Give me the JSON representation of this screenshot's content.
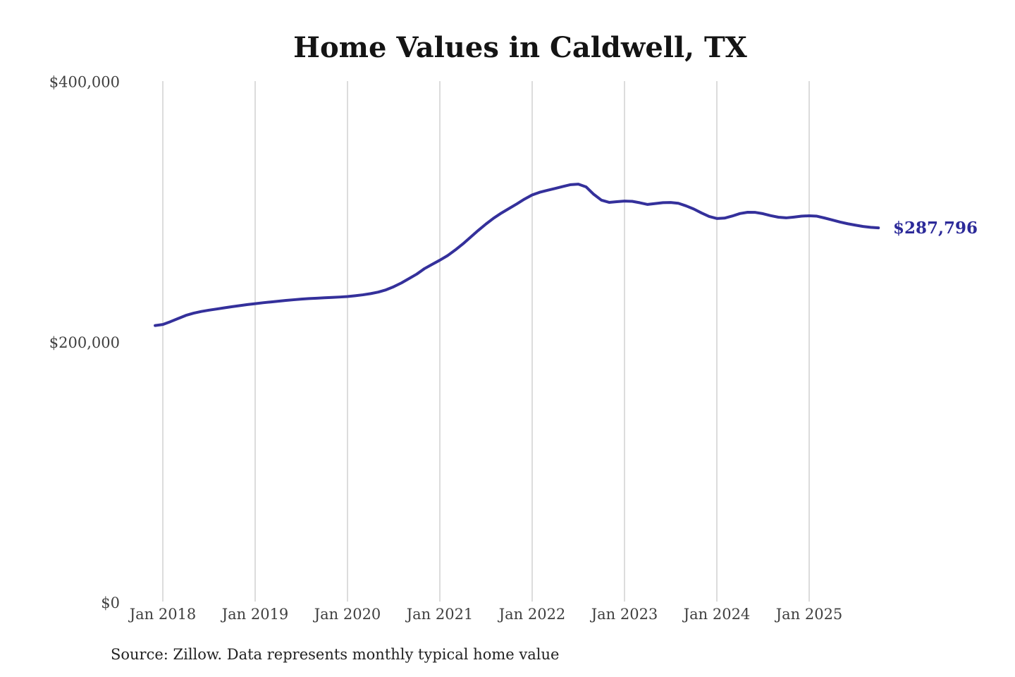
{
  "title": "Home Values in Caldwell, TX",
  "source_note": "Source: Zillow. Data represents monthly typical home value",
  "end_label": "$287,796",
  "colors": {
    "line": "#34309b",
    "end_label": "#2c2a99",
    "grid": "#c9c9c9",
    "tick_text": "#3f3f3f",
    "title_text": "#141414",
    "source_text": "#222222",
    "background": "#ffffff"
  },
  "chart_data": {
    "type": "line",
    "title": "Home Values in Caldwell, TX",
    "xlabel": "",
    "ylabel": "",
    "grid": "vertical-only",
    "legend_position": "none",
    "ylim": [
      0,
      400000
    ],
    "y_ticks": [
      {
        "label": "$400,000",
        "value": 400000
      },
      {
        "label": "$200,000",
        "value": 200000
      },
      {
        "label": "$0",
        "value": 0
      }
    ],
    "x_ticks": [
      {
        "label": "Jan 2018",
        "year": 2018
      },
      {
        "label": "Jan 2019",
        "year": 2019
      },
      {
        "label": "Jan 2020",
        "year": 2020
      },
      {
        "label": "Jan 2021",
        "year": 2021
      },
      {
        "label": "Jan 2022",
        "year": 2022
      },
      {
        "label": "Jan 2023",
        "year": 2023
      },
      {
        "label": "Jan 2024",
        "year": 2024
      },
      {
        "label": "Jan 2025",
        "year": 2025
      }
    ],
    "x_start_month": "2017-12",
    "x_frequency": "monthly",
    "last_value": 287796,
    "last_value_label": "$287,796",
    "series": [
      {
        "name": "Monthly typical home value",
        "values": [
          212800,
          213600,
          215800,
          218200,
          220600,
          222300,
          223600,
          224600,
          225500,
          226400,
          227300,
          228100,
          228900,
          229600,
          230300,
          230900,
          231500,
          232100,
          232600,
          233100,
          233500,
          233800,
          234100,
          234400,
          234700,
          235100,
          235700,
          236400,
          237300,
          238500,
          240200,
          242600,
          245500,
          248900,
          252300,
          256500,
          259800,
          263000,
          266500,
          270800,
          275500,
          280700,
          285900,
          290800,
          295300,
          299200,
          302700,
          306200,
          309900,
          313100,
          315200,
          316700,
          318100,
          319600,
          321000,
          321400,
          319300,
          313600,
          309100,
          307400,
          307900,
          308400,
          308200,
          307100,
          305800,
          306500,
          307200,
          307300,
          306700,
          304700,
          302300,
          299300,
          296600,
          295000,
          295300,
          296900,
          298800,
          299800,
          299700,
          298700,
          297200,
          296000,
          295500,
          296100,
          296800,
          297100,
          296800,
          295400,
          293900,
          292300,
          291000,
          289900,
          288900,
          288200,
          287796
        ]
      }
    ]
  }
}
